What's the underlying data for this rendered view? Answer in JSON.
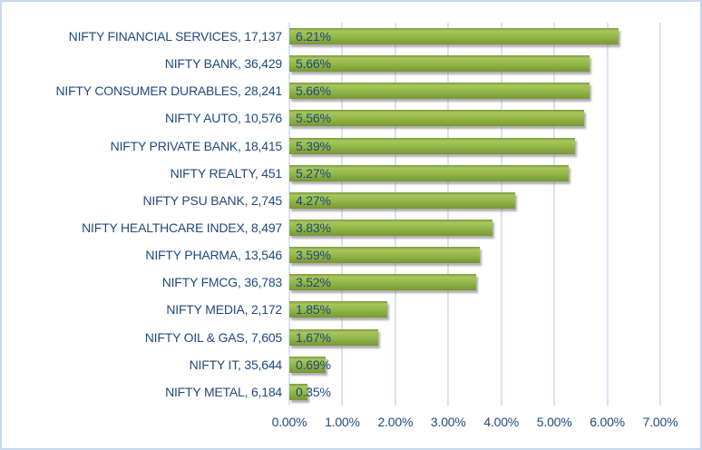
{
  "chart_data": {
    "type": "bar",
    "orientation": "horizontal",
    "title": "",
    "xlabel": "",
    "ylabel": "",
    "xlim": [
      0,
      7
    ],
    "grid": "vertical",
    "legend_position": "none",
    "x_tick_labels": [
      "0.00%",
      "1.00%",
      "2.00%",
      "3.00%",
      "4.00%",
      "5.00%",
      "6.00%",
      "7.00%"
    ],
    "items": [
      {
        "name": "NIFTY FINANCIAL SERVICES",
        "index_level": "17,137",
        "category_label": "NIFTY FINANCIAL SERVICES, 17,137",
        "value": 6.21,
        "value_label": "6.21%"
      },
      {
        "name": "NIFTY BANK",
        "index_level": "36,429",
        "category_label": "NIFTY BANK, 36,429",
        "value": 5.66,
        "value_label": "5.66%"
      },
      {
        "name": "NIFTY CONSUMER DURABLES",
        "index_level": "28,241",
        "category_label": "NIFTY CONSUMER DURABLES, 28,241",
        "value": 5.66,
        "value_label": "5.66%"
      },
      {
        "name": "NIFTY AUTO",
        "index_level": "10,576",
        "category_label": "NIFTY AUTO, 10,576",
        "value": 5.56,
        "value_label": "5.56%"
      },
      {
        "name": "NIFTY PRIVATE BANK",
        "index_level": "18,415",
        "category_label": "NIFTY PRIVATE BANK, 18,415",
        "value": 5.39,
        "value_label": "5.39%"
      },
      {
        "name": "NIFTY REALTY",
        "index_level": "451",
        "category_label": "NIFTY REALTY, 451",
        "value": 5.27,
        "value_label": "5.27%"
      },
      {
        "name": "NIFTY PSU BANK",
        "index_level": "2,745",
        "category_label": "NIFTY PSU BANK, 2,745",
        "value": 4.27,
        "value_label": "4.27%"
      },
      {
        "name": "NIFTY HEALTHCARE INDEX",
        "index_level": "8,497",
        "category_label": "NIFTY HEALTHCARE INDEX, 8,497",
        "value": 3.83,
        "value_label": "3.83%"
      },
      {
        "name": "NIFTY PHARMA",
        "index_level": "13,546",
        "category_label": "NIFTY PHARMA, 13,546",
        "value": 3.59,
        "value_label": "3.59%"
      },
      {
        "name": "NIFTY FMCG",
        "index_level": "36,783",
        "category_label": "NIFTY FMCG, 36,783",
        "value": 3.52,
        "value_label": "3.52%"
      },
      {
        "name": "NIFTY MEDIA",
        "index_level": "2,172",
        "category_label": "NIFTY MEDIA, 2,172",
        "value": 1.85,
        "value_label": "1.85%"
      },
      {
        "name": "NIFTY OIL & GAS",
        "index_level": "7,605",
        "category_label": "NIFTY OIL & GAS, 7,605",
        "value": 1.67,
        "value_label": "1.67%"
      },
      {
        "name": "NIFTY IT",
        "index_level": "35,644",
        "category_label": "NIFTY IT, 35,644",
        "value": 0.69,
        "value_label": "0.69%"
      },
      {
        "name": "NIFTY METAL",
        "index_level": "6,184",
        "category_label": "NIFTY METAL, 6,184",
        "value": 0.35,
        "value_label": "0.35%"
      }
    ],
    "colors": {
      "bar_fill": "#8fb445",
      "bar_highlight": "#a6c65e",
      "bar_dark_edge": "#789636",
      "text": "#1f497d",
      "gridline": "#d7e4f2",
      "chart_border": "#c8d8ed",
      "background": "#ffffff"
    }
  }
}
